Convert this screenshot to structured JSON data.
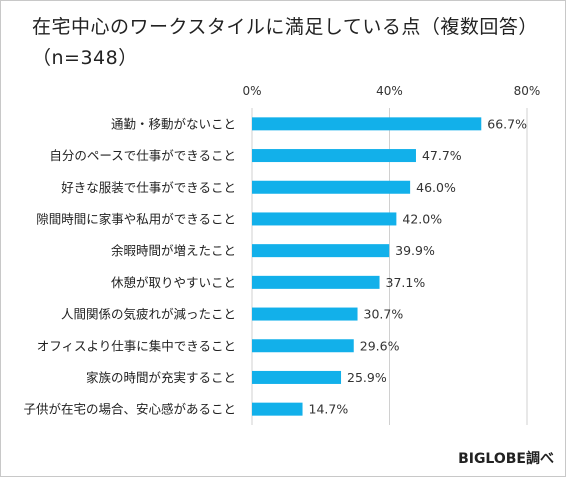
{
  "title": "在宅中心のワークスタイルに満足している点（複数回答）",
  "subtitle": "（n=348）",
  "footer": "BIGLOBE調べ",
  "chart_data": {
    "type": "bar",
    "orientation": "horizontal",
    "title": "在宅中心のワークスタイルに満足している点（複数回答）",
    "subtitle": "（n=348）",
    "categories": [
      "通勤・移動がないこと",
      "自分のペースで仕事ができること",
      "好きな服装で仕事ができること",
      "隙間時間に家事や私用ができること",
      "余暇時間が増えたこと",
      "休憩が取りやすいこと",
      "人間関係の気疲れが減ったこと",
      "オフィスより仕事に集中できること",
      "家族の時間が充実すること",
      "子供が在宅の場合、安心感があること"
    ],
    "values": [
      66.7,
      47.7,
      46.0,
      42.0,
      39.9,
      37.1,
      30.7,
      29.6,
      25.9,
      14.7
    ],
    "value_labels": [
      "66.7%",
      "47.7%",
      "46.0%",
      "42.0%",
      "39.9%",
      "37.1%",
      "30.7%",
      "29.6%",
      "25.9%",
      "14.7%"
    ],
    "ticks": [
      0,
      40,
      80
    ],
    "tick_labels": [
      "0%",
      "40%",
      "80%"
    ],
    "xlim": [
      0,
      80
    ],
    "grid": true,
    "legend": "none",
    "bar_color": "#12b0ea",
    "grid_color": "#d0d0d0"
  }
}
